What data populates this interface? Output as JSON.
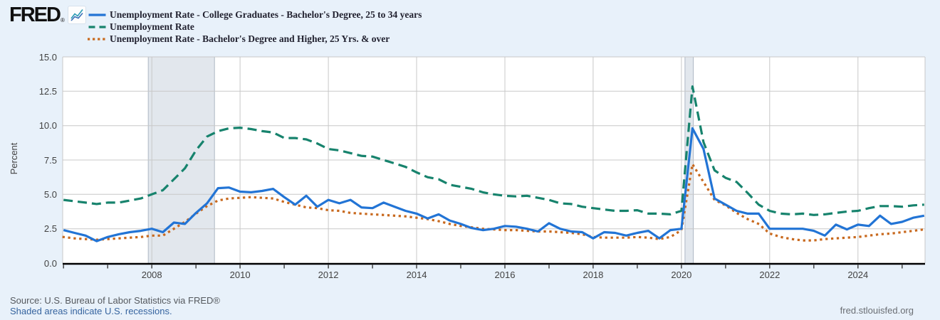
{
  "brand": {
    "logo_text": "FRED",
    "logo_reg_mark": "®",
    "logo_icon": "line-chart-icon"
  },
  "colors": {
    "background": "#e8f1fa",
    "plot_background": "#ffffff",
    "gridline": "#c8c8c8",
    "recession_fill": "#e2e7ed",
    "recession_edge": "#aeb8c4",
    "axis_line": "#000000",
    "series_blue": "#2274d5",
    "series_green": "#17836d",
    "series_orange": "#c8691e",
    "link_blue": "#36649f"
  },
  "chart_data": {
    "type": "line",
    "title": "",
    "ylabel": "Percent",
    "xlabel": "",
    "ylim": [
      0,
      15
    ],
    "xlim": [
      2005.98,
      2025.52
    ],
    "x_start": 2006.0,
    "x_step": 0.25,
    "x_unit": "year (quarterly points)",
    "grid": "horizontal and vertical gridlines on",
    "legend_position": "top-left",
    "yticks": [
      0,
      2.5,
      5,
      7.5,
      10,
      12.5,
      15
    ],
    "ytick_labels": [
      "0.0",
      "2.5",
      "5.0",
      "7.5",
      "10.0",
      "12.5",
      "15.0"
    ],
    "xticks": [
      2008,
      2010,
      2012,
      2014,
      2016,
      2018,
      2020,
      2022,
      2024
    ],
    "xtick_labels": [
      "2008",
      "2010",
      "2012",
      "2014",
      "2016",
      "2018",
      "2020",
      "2022",
      "2024"
    ],
    "xticks_minor": [
      2006,
      2007,
      2008,
      2009,
      2010,
      2011,
      2012,
      2013,
      2014,
      2015,
      2016,
      2017,
      2018,
      2019,
      2020,
      2021,
      2022,
      2023,
      2024,
      2025
    ],
    "recessions": [
      {
        "start": 2007.92,
        "end": 2009.42
      },
      {
        "start": 2020.08,
        "end": 2020.27
      }
    ],
    "series": [
      {
        "label": "Unemployment Rate - College Graduates - Bachelor's Degree, 25 to 34 years",
        "color": "#2274d5",
        "line_style": "solid",
        "draw_order": 3,
        "values": [
          2.4,
          2.2,
          2.0,
          1.6,
          1.9,
          2.1,
          2.25,
          2.35,
          2.5,
          2.25,
          2.95,
          2.85,
          3.65,
          4.35,
          5.45,
          5.5,
          5.2,
          5.15,
          5.25,
          5.4,
          4.8,
          4.25,
          4.9,
          4.1,
          4.6,
          4.35,
          4.6,
          4.05,
          4.0,
          4.4,
          4.1,
          3.8,
          3.6,
          3.25,
          3.55,
          3.1,
          2.85,
          2.55,
          2.4,
          2.5,
          2.7,
          2.65,
          2.5,
          2.3,
          2.9,
          2.5,
          2.3,
          2.25,
          1.8,
          2.25,
          2.2,
          2.0,
          2.2,
          2.35,
          1.8,
          2.4,
          2.5,
          9.8,
          8.3,
          4.7,
          4.25,
          3.8,
          3.6,
          3.6,
          2.5,
          2.5,
          2.5,
          2.5,
          2.35,
          2.0,
          2.8,
          2.45,
          2.8,
          2.7,
          3.45,
          2.85,
          3.0,
          3.3,
          3.45
        ]
      },
      {
        "label": "Unemployment Rate",
        "color": "#17836d",
        "line_style": "dashed",
        "draw_order": 1,
        "values": [
          4.6,
          4.5,
          4.4,
          4.3,
          4.4,
          4.4,
          4.55,
          4.7,
          5.0,
          5.3,
          6.1,
          6.9,
          8.2,
          9.2,
          9.6,
          9.8,
          9.85,
          9.75,
          9.6,
          9.5,
          9.1,
          9.1,
          9.0,
          8.7,
          8.3,
          8.2,
          8.0,
          7.8,
          7.75,
          7.5,
          7.25,
          7.0,
          6.6,
          6.25,
          6.1,
          5.7,
          5.55,
          5.4,
          5.15,
          5.0,
          4.9,
          4.85,
          4.9,
          4.75,
          4.6,
          4.35,
          4.3,
          4.1,
          4.0,
          3.9,
          3.8,
          3.8,
          3.85,
          3.6,
          3.6,
          3.55,
          3.8,
          12.85,
          8.8,
          6.75,
          6.2,
          5.9,
          5.1,
          4.25,
          3.8,
          3.6,
          3.55,
          3.6,
          3.5,
          3.55,
          3.65,
          3.75,
          3.8,
          4.0,
          4.15,
          4.15,
          4.1,
          4.2,
          4.25
        ]
      },
      {
        "label": "Unemployment Rate - Bachelor's Degree and Higher, 25 Yrs. & over",
        "color": "#c8691e",
        "line_style": "dotted",
        "draw_order": 2,
        "values": [
          1.9,
          1.8,
          1.75,
          1.7,
          1.75,
          1.8,
          1.85,
          1.9,
          2.0,
          2.0,
          2.5,
          3.0,
          3.6,
          4.15,
          4.55,
          4.7,
          4.75,
          4.8,
          4.75,
          4.7,
          4.45,
          4.25,
          4.05,
          4.0,
          3.85,
          3.8,
          3.65,
          3.6,
          3.55,
          3.5,
          3.45,
          3.4,
          3.3,
          3.2,
          3.05,
          2.85,
          2.7,
          2.6,
          2.5,
          2.45,
          2.4,
          2.4,
          2.35,
          2.3,
          2.3,
          2.25,
          2.2,
          2.1,
          1.9,
          1.85,
          1.85,
          1.85,
          1.9,
          1.85,
          1.75,
          1.9,
          2.4,
          7.2,
          5.9,
          4.6,
          4.2,
          3.65,
          3.2,
          2.85,
          2.15,
          1.9,
          1.75,
          1.65,
          1.65,
          1.75,
          1.8,
          1.85,
          1.9,
          2.0,
          2.1,
          2.15,
          2.25,
          2.35,
          2.45
        ]
      }
    ]
  },
  "footer": {
    "source": "Source: U.S. Bureau of Labor Statistics via FRED®",
    "recession_note": "Shaded areas indicate U.S. recessions.",
    "site": "fred.stlouisfed.org"
  }
}
